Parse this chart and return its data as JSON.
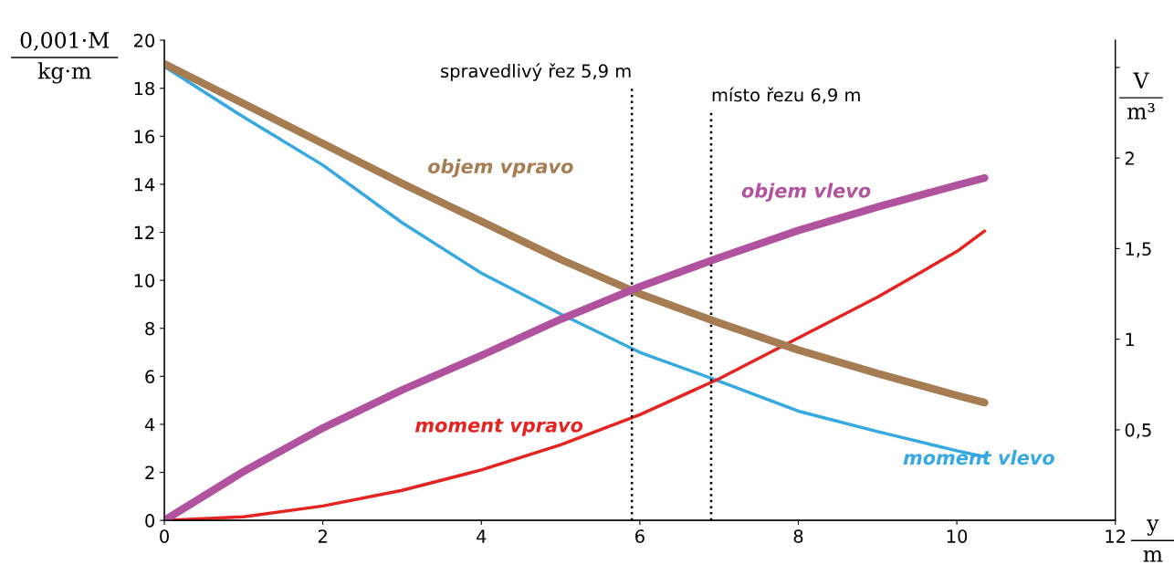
{
  "chart_data": {
    "type": "line",
    "xlabel": "y\nm",
    "ylabel": "0,001·M\nkg·m",
    "y2label": "V\nm³",
    "xlim": [
      0,
      12
    ],
    "xticks": [
      0,
      2,
      4,
      6,
      8,
      10,
      12
    ],
    "ylim": [
      0,
      20
    ],
    "yticks": [
      0,
      2,
      4,
      6,
      8,
      10,
      12,
      14,
      16,
      18,
      20
    ],
    "y2lim": [
      0,
      2.65
    ],
    "y2ticks": [
      {
        "value": 0.5,
        "label": "0,5"
      },
      1,
      {
        "value": 1.5,
        "label": "1,5"
      },
      2,
      {
        "value": 2.5,
        "label": null
      }
    ],
    "grid": false,
    "legend": false,
    "marker": "none",
    "line_style": "solid",
    "x": [
      0,
      1,
      2,
      3,
      4,
      5,
      6,
      7,
      8,
      9,
      10,
      10.35
    ],
    "series": [
      {
        "name": "objem vpravo",
        "color": "#a67c52",
        "axis": "y2",
        "values": [
          2.52,
          2.3,
          2.08,
          1.86,
          1.65,
          1.44,
          1.25,
          1.09,
          0.94,
          0.81,
          0.69,
          0.65
        ]
      },
      {
        "name": "objem vlevo",
        "color": "#b0529e",
        "axis": "y2",
        "values": [
          0,
          0.27,
          0.51,
          0.72,
          0.91,
          1.11,
          1.29,
          1.45,
          1.6,
          1.73,
          1.85,
          1.89
        ]
      },
      {
        "name": "moment vlevo",
        "color": "#36a9e1",
        "values": [
          18.9,
          16.8,
          14.8,
          12.4,
          10.3,
          8.6,
          7.0,
          5.8,
          4.55,
          3.7,
          2.9,
          2.65
        ]
      },
      {
        "name": "moment vpravo",
        "color": "#e52421",
        "values": [
          0,
          0.15,
          0.6,
          1.25,
          2.1,
          3.15,
          4.4,
          5.9,
          7.6,
          9.3,
          11.2,
          12.05
        ]
      }
    ],
    "ref_lines": [
      {
        "axis": "x",
        "value": 5.9,
        "label": "spravedlivý řez 5,9 m",
        "color": "#000000",
        "line_style": "dotted"
      },
      {
        "axis": "x",
        "value": 6.9,
        "label": "místo řezu 6,9 m",
        "color": "#000000",
        "line_style": "dotted"
      }
    ]
  }
}
